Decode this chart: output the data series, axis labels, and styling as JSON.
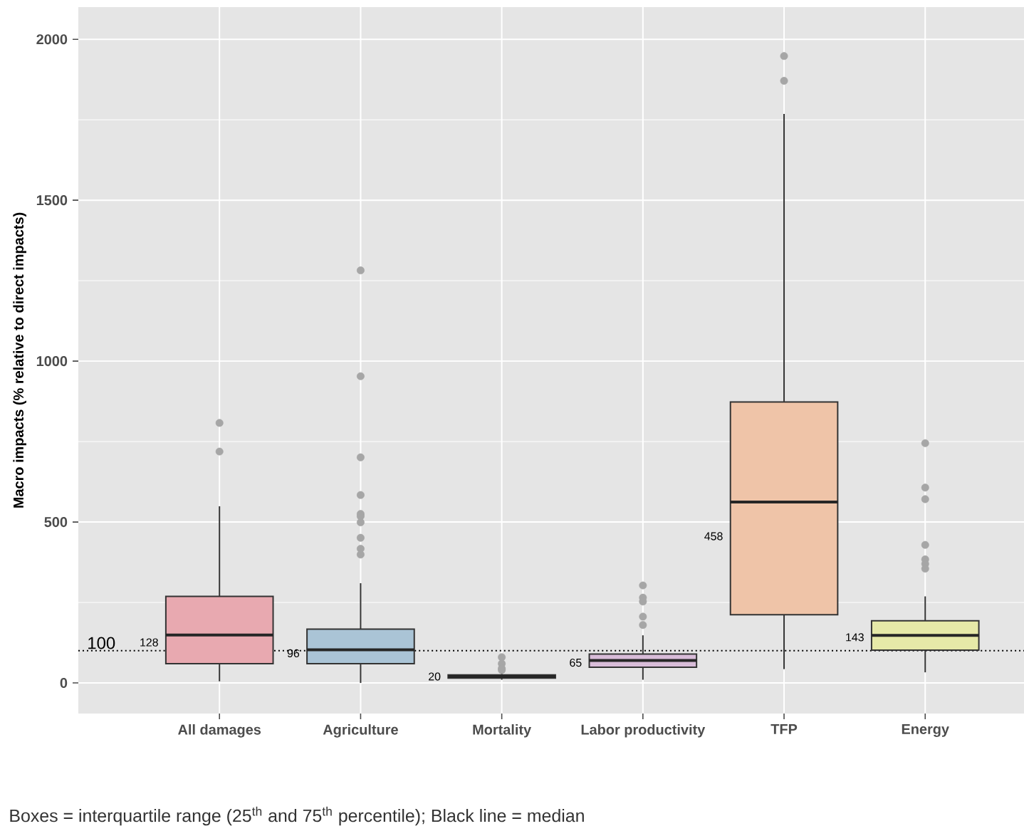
{
  "chart_data": {
    "type": "box",
    "ylabel": "Macro impacts (% relative to direct impacts)",
    "categories": [
      "All damages",
      "Agriculture",
      "Mortality",
      "Labor productivity",
      "TFP",
      "Energy"
    ],
    "colors": [
      "#e8a9b0",
      "#aac4d6",
      "#b8cfa8",
      "#d8bcd8",
      "#efc4a8",
      "#e6e9a8"
    ],
    "boxes": [
      {
        "low": 5,
        "q1": 60,
        "median": 149,
        "q3": 269,
        "high": 549,
        "outliers": [
          808,
          719
        ]
      },
      {
        "low": 0,
        "q1": 60,
        "median": 103,
        "q3": 167,
        "high": 310,
        "outliers": [
          1282,
          953,
          701,
          584,
          525,
          518,
          499,
          451,
          417,
          399
        ]
      },
      {
        "low": 10,
        "q1": 15,
        "median": 20,
        "q3": 25,
        "high": 30,
        "outliers": [
          80,
          60,
          45,
          40
        ]
      },
      {
        "low": 10,
        "q1": 49,
        "median": 70,
        "q3": 90,
        "high": 148,
        "outliers": [
          303,
          265,
          253,
          206,
          180
        ]
      },
      {
        "low": 43,
        "q1": 212,
        "median": 562,
        "q3": 873,
        "high": 1768,
        "outliers": [
          1948,
          1871
        ]
      },
      {
        "low": 33,
        "q1": 102,
        "median": 148,
        "q3": 193,
        "high": 269,
        "outliers": [
          745,
          607,
          571,
          429,
          384,
          370,
          355
        ]
      }
    ],
    "ylim": [
      -95,
      2100
    ],
    "yticks": [
      0,
      500,
      1000,
      1500,
      2000
    ],
    "grid": true,
    "ref_lines": [
      {
        "axis": "y",
        "value": 100,
        "label": "100",
        "line_style": "dotted",
        "color": "#000000"
      }
    ],
    "annotations": [
      "128",
      "96",
      "20",
      "65",
      "458",
      "143",
      "Boxes = interquartile range (25$^{th}$ and 75$^{th}$ percentile); Black line = median"
    ]
  }
}
